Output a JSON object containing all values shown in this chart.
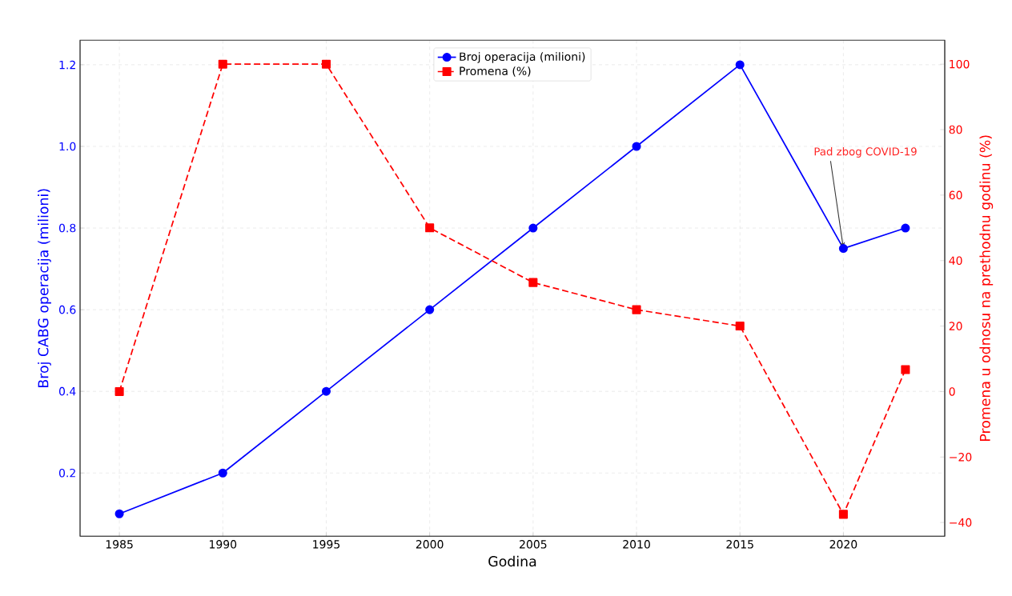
{
  "chart_data": {
    "type": "line",
    "xlabel": "Godina",
    "ylabel": "Broj CABG operacija (milioni)",
    "y2label": "Promena u odnosu na prethodnu godinu (%)",
    "x": [
      1985,
      1990,
      1995,
      2000,
      2005,
      2010,
      2015,
      2020,
      2023
    ],
    "series": [
      {
        "name": "Broj operacija (milioni)",
        "color": "#0000ff",
        "marker": "circle",
        "line_style": "solid",
        "values": [
          0.1,
          0.2,
          0.4,
          0.6,
          0.8,
          1.0,
          1.2,
          0.75,
          0.8
        ]
      },
      {
        "name": "Promena (%)",
        "color": "#ff0000",
        "marker": "square",
        "line_style": "dashed",
        "axis": "y2",
        "values": [
          0,
          100,
          100,
          50,
          33.3,
          25,
          20,
          -37.5,
          6.7
        ]
      }
    ],
    "xlim": [
      1983.1,
      2024.9
    ],
    "xticks": [
      1985,
      1990,
      1995,
      2000,
      2005,
      2010,
      2015,
      2020
    ],
    "ylim": [
      0.045,
      1.26
    ],
    "yticks": [
      {
        "value": 0.2,
        "label": "0.2"
      },
      {
        "value": 0.4,
        "label": "0.4"
      },
      {
        "value": 0.6,
        "label": "0.6"
      },
      {
        "value": 0.8,
        "label": "0.8"
      },
      {
        "value": 1.0,
        "label": "1.0"
      },
      {
        "value": 1.2,
        "label": "1.2"
      }
    ],
    "y2lim": [
      -44.2,
      107.3
    ],
    "y2ticks": [
      {
        "value": -40,
        "label": "−40"
      },
      {
        "value": -20,
        "label": "−20"
      },
      0,
      20,
      40,
      60,
      80,
      100
    ],
    "grid": true,
    "legend": "top",
    "annotations": [
      {
        "text": "Pad zbog COVID-19",
        "x": 2020,
        "y": 0.75
      }
    ]
  }
}
